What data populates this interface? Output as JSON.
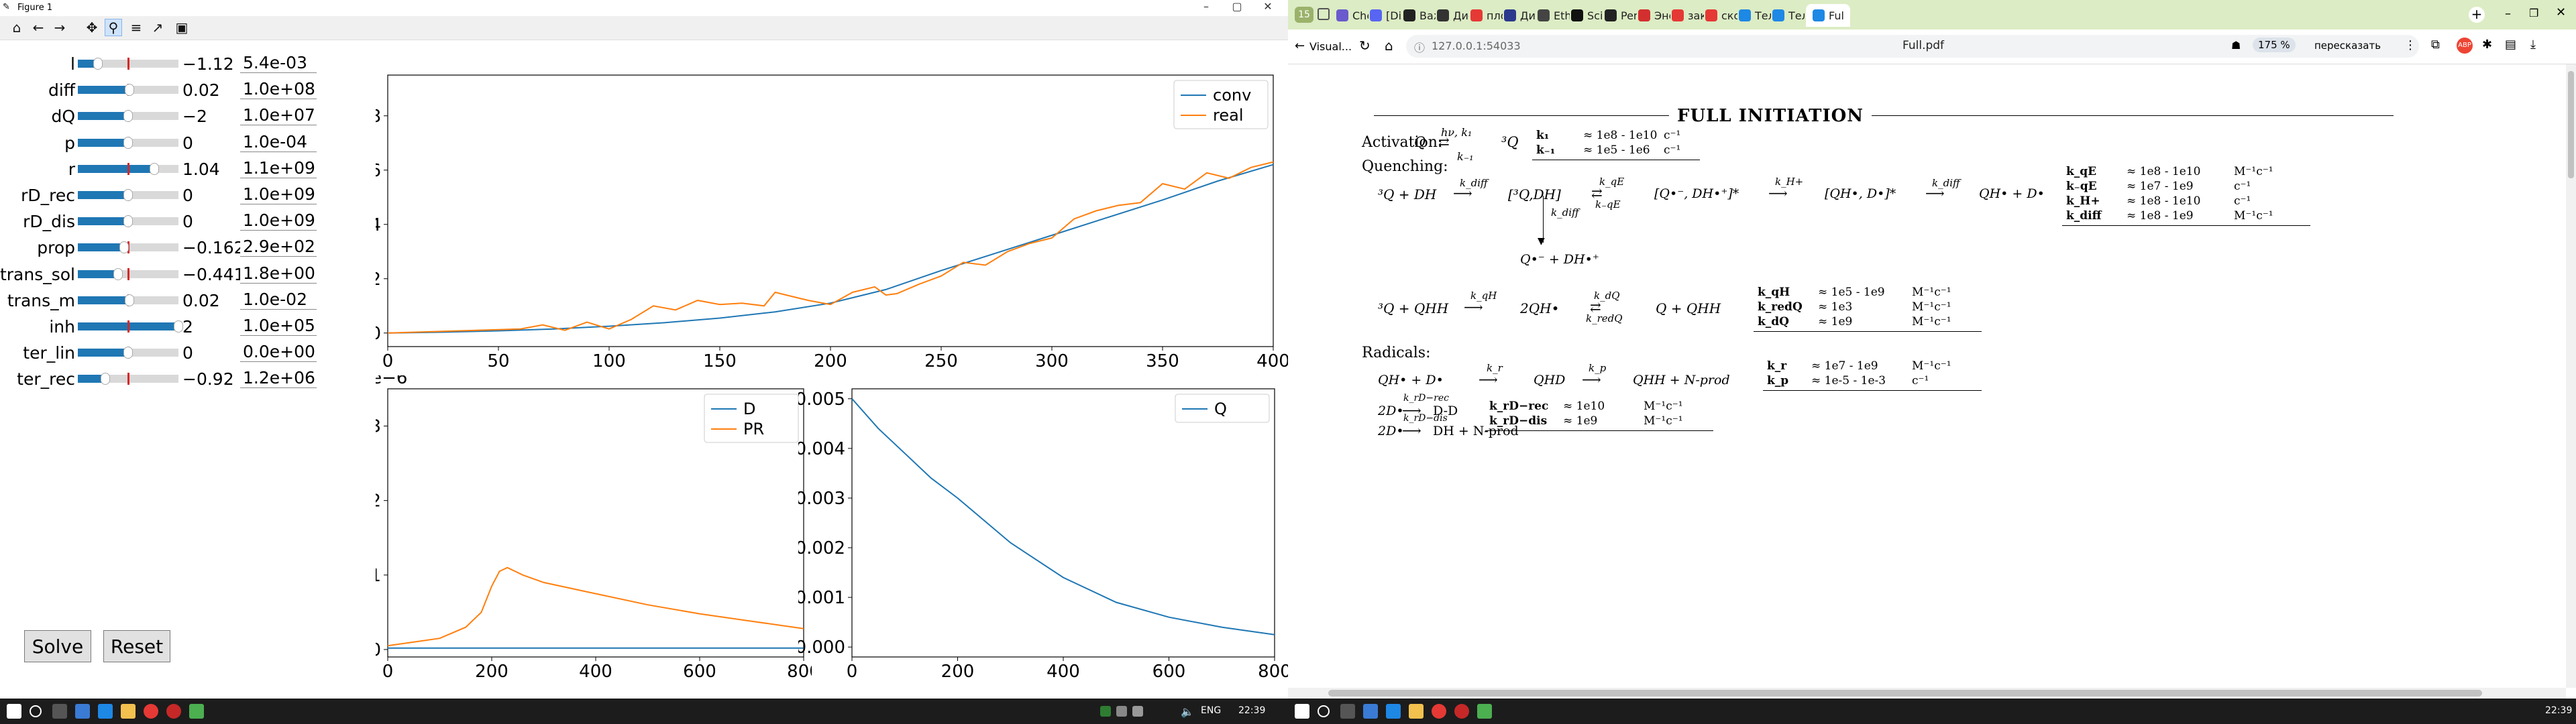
{
  "left_window": {
    "title": "Figure 1",
    "toolbar": [
      "home-icon",
      "back-icon",
      "forward-icon",
      "pan-icon",
      "zoom-icon",
      "configure-icon",
      "axes-edit-icon",
      "save-icon"
    ],
    "sliders": [
      {
        "label": "l",
        "value": "−1.12",
        "box": "5.4e-03",
        "pos": 0.2,
        "init": 0.5
      },
      {
        "label": "diff",
        "value": "0.02",
        "box": "1.0e+08",
        "pos": 0.51,
        "init": 0.5
      },
      {
        "label": "dQ",
        "value": "−2",
        "box": "1.0e+07",
        "pos": 0.5,
        "init": 0.5
      },
      {
        "label": "p",
        "value": "0",
        "box": "1.0e-04",
        "pos": 0.5,
        "init": 0.5
      },
      {
        "label": "r",
        "value": "1.04",
        "box": "1.1e+09",
        "pos": 0.76,
        "init": 0.5
      },
      {
        "label": "rD_rec",
        "value": "0",
        "box": "1.0e+09",
        "pos": 0.5,
        "init": 0.5
      },
      {
        "label": "rD_dis",
        "value": "0",
        "box": "1.0e+09",
        "pos": 0.5,
        "init": 0.5
      },
      {
        "label": "prop",
        "value": "−0.162",
        "box": "2.9e+02",
        "pos": 0.46,
        "init": 0.5
      },
      {
        "label": "trans_sol",
        "value": "−0.441",
        "box": "1.8e+00",
        "pos": 0.4,
        "init": 0.5
      },
      {
        "label": "trans_m",
        "value": "0.02",
        "box": "1.0e-02",
        "pos": 0.51,
        "init": 0.5
      },
      {
        "label": "inh",
        "value": "2",
        "box": "1.0e+05",
        "pos": 1.0,
        "init": 0.5
      },
      {
        "label": "ter_lin",
        "value": "0",
        "box": "0.0e+00",
        "pos": 0.5,
        "init": 0.5
      },
      {
        "label": "ter_rec",
        "value": "−0.92",
        "box": "1.2e+06",
        "pos": 0.27,
        "init": 0.5
      }
    ],
    "buttons": {
      "solve": "Solve",
      "reset": "Reset"
    }
  },
  "chart_data": [
    {
      "type": "line",
      "xlim": [
        0,
        400
      ],
      "ylim": [
        -0.5,
        9.5
      ],
      "xticks": [
        "0",
        "50",
        "100",
        "150",
        "200",
        "250",
        "300",
        "350",
        "400"
      ],
      "yticks": [
        "0",
        "2",
        "4",
        "6",
        "8"
      ],
      "legend": "top-right",
      "series": [
        {
          "name": "conv",
          "color": "#1f77b4",
          "x": [
            0,
            25,
            50,
            75,
            100,
            125,
            150,
            175,
            200,
            225,
            250,
            275,
            300,
            325,
            350,
            375,
            400
          ],
          "y": [
            0,
            0.03,
            0.08,
            0.15,
            0.25,
            0.38,
            0.55,
            0.78,
            1.1,
            1.6,
            2.3,
            2.95,
            3.6,
            4.25,
            4.9,
            5.6,
            6.2
          ]
        },
        {
          "name": "real",
          "color": "#ff7f0e",
          "x": [
            0,
            20,
            40,
            60,
            70,
            80,
            90,
            100,
            110,
            120,
            130,
            140,
            150,
            160,
            170,
            175,
            180,
            190,
            200,
            210,
            220,
            225,
            230,
            240,
            250,
            260,
            270,
            280,
            290,
            300,
            310,
            320,
            330,
            340,
            350,
            360,
            370,
            380,
            390,
            400
          ],
          "y": [
            0,
            0.05,
            0.1,
            0.15,
            0.3,
            0.1,
            0.4,
            0.15,
            0.5,
            1.0,
            0.85,
            1.2,
            1.05,
            1.1,
            1.0,
            1.5,
            1.4,
            1.2,
            1.05,
            1.5,
            1.7,
            1.4,
            1.45,
            1.8,
            2.1,
            2.6,
            2.5,
            3.0,
            3.3,
            3.5,
            4.2,
            4.5,
            4.7,
            4.8,
            5.5,
            5.3,
            5.9,
            5.7,
            6.1,
            6.3
          ]
        }
      ]
    },
    {
      "type": "line",
      "xlim": [
        0,
        800
      ],
      "ylim": [
        -0.1,
        3.5
      ],
      "xticks": [
        "0",
        "200",
        "400",
        "600",
        "800"
      ],
      "yticks": [
        "0",
        "1",
        "2",
        "3"
      ],
      "offset_text": "1e−6",
      "legend": "top-right",
      "series": [
        {
          "name": "D",
          "color": "#1f77b4",
          "x": [
            0,
            200,
            400,
            600,
            800
          ],
          "y": [
            0.02,
            0.02,
            0.02,
            0.02,
            0.02
          ]
        },
        {
          "name": "PR",
          "color": "#ff7f0e",
          "x": [
            0,
            50,
            100,
            150,
            180,
            200,
            215,
            230,
            260,
            300,
            400,
            500,
            600,
            700,
            800
          ],
          "y": [
            0.05,
            0.1,
            0.15,
            0.3,
            0.5,
            0.85,
            1.05,
            1.1,
            1.0,
            0.9,
            0.75,
            0.6,
            0.48,
            0.38,
            0.28
          ]
        }
      ]
    },
    {
      "type": "line",
      "xlim": [
        0,
        800
      ],
      "ylim": [
        -0.0002,
        0.0052
      ],
      "xticks": [
        "0",
        "200",
        "400",
        "600",
        "800"
      ],
      "yticks": [
        "0.000",
        "0.001",
        "0.002",
        "0.003",
        "0.004",
        "0.005"
      ],
      "legend": "top-right",
      "series": [
        {
          "name": "Q",
          "color": "#1f77b4",
          "x": [
            0,
            50,
            100,
            150,
            200,
            300,
            400,
            500,
            600,
            700,
            800
          ],
          "y": [
            0.005,
            0.0044,
            0.0039,
            0.0034,
            0.003,
            0.0021,
            0.0014,
            0.0009,
            0.0006,
            0.0004,
            0.00025
          ]
        }
      ]
    }
  ],
  "browser": {
    "tab_count": "15",
    "tabs": [
      "Chem",
      "[Disc",
      "Важо",
      "Дисс",
      "плотн",
      "Диме",
      "Ethyle",
      "Sci-H",
      "Pentx",
      "Энер",
      "закон",
      "скор",
      "Теле",
      "Теле",
      "Ful"
    ],
    "back_label": "Visual...",
    "url": "127.0.0.1:54033",
    "page_title": "Full.pdf",
    "zoom": "175 %",
    "translate": "пересказать"
  },
  "pdf": {
    "heading": "FULL INITIATION",
    "activation_label": "Activation:",
    "quenching_label": "Quenching:",
    "radicals_label": "Radicals:",
    "act_eq": "Q",
    "act_arrow_top": "hν, k₁",
    "act_arrow_bot": "k₋₁",
    "act_prod": "³Q",
    "act_table": [
      [
        "k₁",
        "≈ 1e8 - 1e10",
        "c⁻¹"
      ],
      [
        "k₋₁",
        "≈ 1e5 - 1e6",
        "c⁻¹"
      ]
    ],
    "q1_a": "³Q + DH",
    "q1_b": "[³Q,DH]",
    "q1_c": "[Q•⁻, DH•⁺]*",
    "q1_d": "[QH•, D•]*",
    "q1_e": "QH• + D•",
    "q1_k_diff": "k_diff",
    "q1_k_qE": "k_qE",
    "q1_k_mqE": "k₋qE",
    "q1_k_H": "k_H+",
    "q1_k_diff2": "k_diff",
    "q1_down": "k_diff",
    "q1_sep": "Q•⁻ + DH•⁺",
    "q_table": [
      [
        "k_qE",
        "≈ 1e8 - 1e10",
        "M⁻¹c⁻¹"
      ],
      [
        "k₋qE",
        "≈ 1e7 - 1e9",
        "c⁻¹"
      ],
      [
        "k_H+",
        "≈ 1e8 - 1e10",
        "c⁻¹"
      ],
      [
        "k_diff",
        "≈ 1e8 - 1e9",
        "M⁻¹c⁻¹"
      ]
    ],
    "q2_a": "³Q + QHH",
    "q2_kqH": "k_qH",
    "q2_b": "2QH•",
    "q2_kdQ": "k_dQ",
    "q2_kred": "k_redQ",
    "q2_c": "Q + QHH",
    "q2_table": [
      [
        "k_qH",
        "≈ 1e5 - 1e9",
        "M⁻¹c⁻¹"
      ],
      [
        "k_redQ",
        "≈ 1e3",
        "M⁻¹c⁻¹"
      ],
      [
        "k_dQ",
        "≈ 1e9",
        "M⁻¹c⁻¹"
      ]
    ],
    "r1_a": "QH• + D•",
    "r1_kr": "k_r",
    "r1_b": "QHD",
    "r1_kp": "k_p",
    "r1_c": "QHH + N-prod",
    "r1_table": [
      [
        "k_r",
        "≈ 1e7 - 1e9",
        "M⁻¹c⁻¹"
      ],
      [
        "k_p",
        "≈ 1e-5 - 1e-3",
        "c⁻¹"
      ]
    ],
    "r2_a": "2D•",
    "r2_k": "k_rD−rec",
    "r2_b": "D-D",
    "r3_a": "2D•",
    "r3_k": "k_rD−dis",
    "r3_b": "DH + N-prod",
    "r23_table": [
      [
        "k_rD−rec",
        "≈ 1e10",
        "M⁻¹c⁻¹"
      ],
      [
        "k_rD−dis",
        "≈ 1e9",
        "M⁻¹c⁻¹"
      ]
    ]
  },
  "taskbar": {
    "lang": "ENG",
    "time_left": "22:39",
    "time_right": "22:39"
  }
}
